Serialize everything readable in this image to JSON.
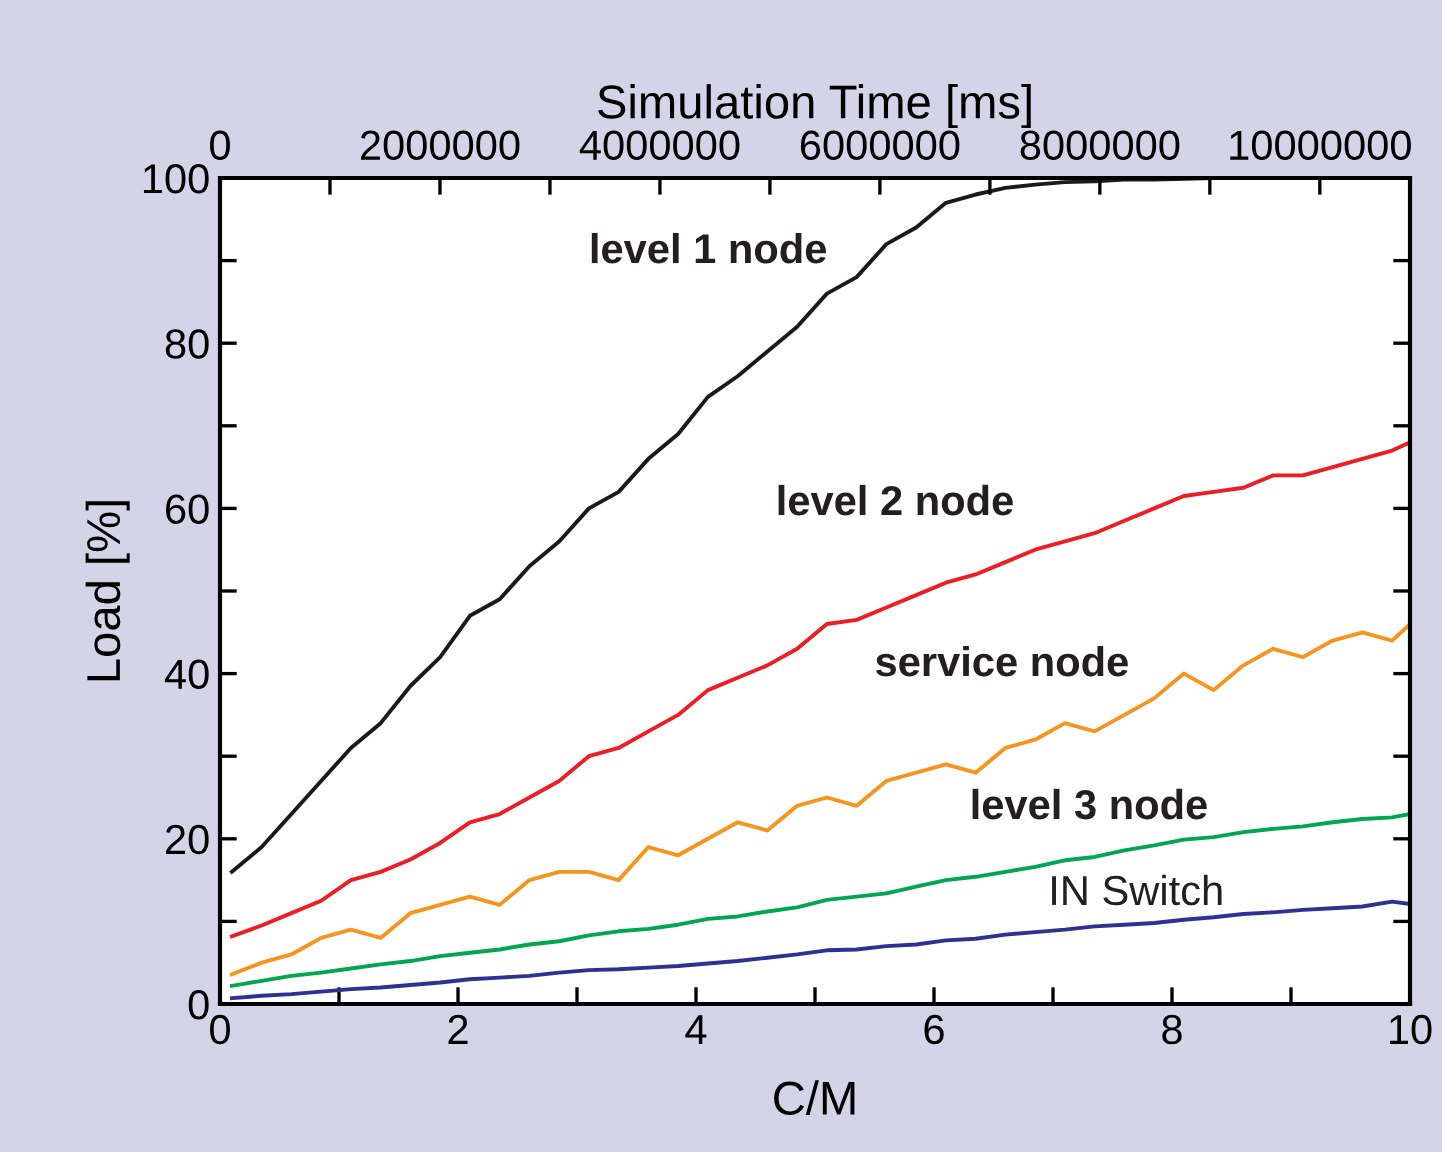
{
  "chart_data": {
    "type": "line",
    "xlabel": "C/M",
    "ylabel": "Load [%]",
    "x2label": "Simulation Time [ms]",
    "xlim": [
      0,
      10
    ],
    "ylim": [
      0,
      100
    ],
    "xticks": [
      0,
      {
        "value": 1,
        "label": null
      },
      2,
      {
        "value": 3,
        "label": null
      },
      4,
      {
        "value": 5,
        "label": null
      },
      6,
      {
        "value": 7,
        "label": null
      },
      8,
      {
        "value": 9,
        "label": null
      },
      10
    ],
    "yticks": [
      0,
      {
        "value": 10,
        "label": null
      },
      20,
      {
        "value": 30,
        "label": null
      },
      40,
      {
        "value": 50,
        "label": null
      },
      60,
      {
        "value": 70,
        "label": null
      },
      80,
      {
        "value": 90,
        "label": null
      },
      100
    ],
    "x2lim": [
      0,
      10820000
    ],
    "x2ticks": [
      0,
      {
        "value": 1000000,
        "label": null
      },
      2000000,
      {
        "value": 3000000,
        "label": null
      },
      4000000,
      {
        "value": 5000000,
        "label": null
      },
      6000000,
      {
        "value": 7000000,
        "label": null
      },
      8000000,
      {
        "value": 9000000,
        "label": null
      },
      10000000
    ],
    "grid": false,
    "legend": false,
    "marker": "none",
    "line_style": "solid",
    "x": [
      0.1,
      0.35,
      0.6,
      0.85,
      1.1,
      1.35,
      1.6,
      1.85,
      2.1,
      2.35,
      2.6,
      2.85,
      3.1,
      3.35,
      3.6,
      3.85,
      4.1,
      4.35,
      4.6,
      4.85,
      5.1,
      5.35,
      5.6,
      5.85,
      6.1,
      6.35,
      6.6,
      6.85,
      7.1,
      7.35,
      7.6,
      7.85,
      8.1,
      8.35,
      8.6,
      8.85,
      9.1,
      9.35,
      9.6,
      9.85,
      10.0
    ],
    "series": [
      {
        "name": "level 1 node",
        "color": "#1a1a1a",
        "values": [
          16,
          19,
          23,
          27,
          31,
          34,
          38.5,
          42,
          47,
          49,
          53,
          56,
          60,
          62,
          66,
          69,
          73.5,
          76,
          79,
          82,
          86,
          88,
          92,
          94,
          97,
          98,
          98.8,
          99.2,
          99.5,
          99.6,
          99.8,
          99.8,
          99.9,
          100,
          100,
          100,
          100,
          100,
          100,
          100,
          100
        ]
      },
      {
        "name": "level 2 node",
        "color": "#ee1c25",
        "values": [
          8.2,
          9.5,
          11,
          12.5,
          15,
          16,
          17.5,
          19.5,
          22,
          23,
          25,
          27,
          30,
          31,
          33,
          35,
          38,
          39.5,
          41,
          43,
          46,
          46.5,
          48,
          49.5,
          51,
          52,
          53.5,
          55,
          56,
          57,
          58.5,
          60,
          61.5,
          62,
          62.5,
          64,
          64,
          65,
          66,
          67,
          68
        ]
      },
      {
        "name": "service node",
        "color": "#f7941d",
        "values": [
          3.6,
          5,
          6,
          8,
          9,
          8,
          11,
          12,
          13,
          12,
          15,
          16,
          16,
          15,
          19,
          18,
          20,
          22,
          21,
          24,
          25,
          24,
          27,
          28,
          29,
          28,
          31,
          32,
          34,
          33,
          35,
          37,
          40,
          38,
          41,
          43,
          42,
          44,
          45,
          44,
          46
        ]
      },
      {
        "name": "level 3 node",
        "color": "#00a650",
        "values": [
          2.2,
          2.8,
          3.4,
          3.8,
          4.3,
          4.8,
          5.2,
          5.8,
          6.2,
          6.6,
          7.2,
          7.6,
          8.3,
          8.8,
          9.1,
          9.6,
          10.3,
          10.6,
          11.2,
          11.7,
          12.6,
          13,
          13.4,
          14.2,
          15,
          15.4,
          16,
          16.6,
          17.4,
          17.8,
          18.6,
          19.2,
          19.9,
          20.2,
          20.8,
          21.2,
          21.5,
          22,
          22.4,
          22.6,
          23
        ]
      },
      {
        "name": "IN Switch",
        "color": "#2e3192",
        "values": [
          0.7,
          1,
          1.2,
          1.5,
          1.8,
          2,
          2.3,
          2.6,
          3,
          3.2,
          3.4,
          3.8,
          4.1,
          4.2,
          4.4,
          4.6,
          4.9,
          5.2,
          5.6,
          6,
          6.5,
          6.6,
          7,
          7.2,
          7.7,
          7.9,
          8.4,
          8.7,
          9,
          9.4,
          9.6,
          9.8,
          10.2,
          10.5,
          10.9,
          11.1,
          11.4,
          11.6,
          11.8,
          12.4,
          12.1
        ]
      }
    ]
  }
}
